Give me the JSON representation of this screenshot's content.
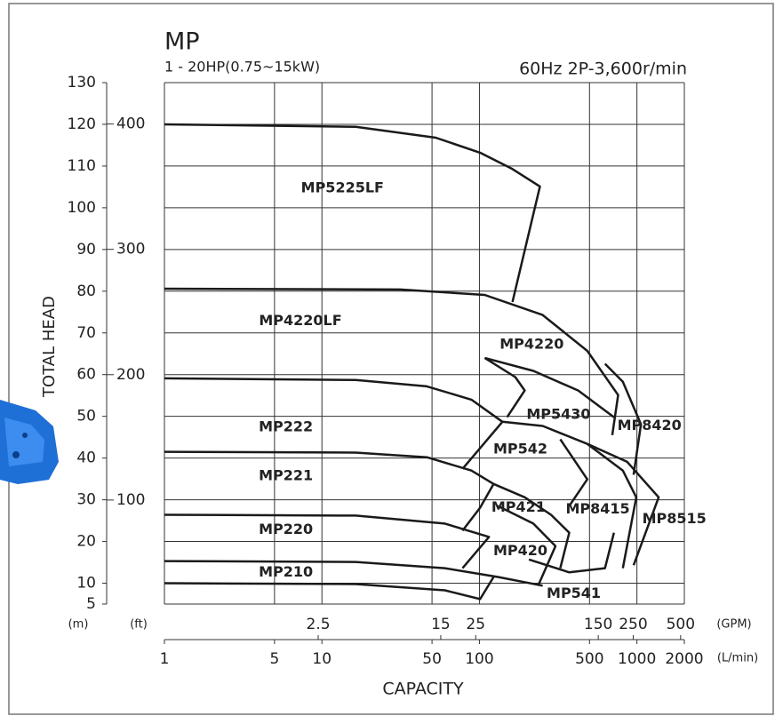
{
  "chart_data": {
    "type": "pump-curve",
    "title": "MP",
    "subtitle": "1 - 20HP(0.75~15kW)",
    "spec": "60Hz 2P-3,600r/min",
    "y_label": "TOTAL HEAD",
    "x_label": "CAPACITY",
    "y_unit": "(m)",
    "y2_unit": "(ft)",
    "x_unit": "(L/min)",
    "x2_unit": "(GPM)",
    "x_log": true,
    "grid": true,
    "color": "#1a1a1a",
    "xlim": [
      1,
      2000
    ],
    "xticks": [
      1,
      5,
      10,
      50,
      100,
      500,
      1000,
      2000
    ],
    "x2lim": [
      0.264,
      528
    ],
    "x2ticks": [
      2.5,
      15,
      25,
      150,
      250,
      500
    ],
    "ylim": [
      5,
      130
    ],
    "yticks": [
      5,
      10,
      20,
      30,
      40,
      50,
      60,
      70,
      80,
      90,
      100,
      110,
      120,
      130
    ],
    "y2lim": [
      17,
      433
    ],
    "y2ticks": [
      100,
      200,
      300,
      400
    ],
    "series": [
      {
        "x": [
          1,
          16.4,
          52.8,
          101,
          160,
          242,
          162
        ],
        "values": [
          120,
          119.4,
          116.8,
          113.2,
          109.4,
          105.1,
          77.4
        ]
      },
      {
        "x": [
          1,
          31.4,
          108,
          252,
          484,
          760,
          697
        ],
        "values": [
          80.6,
          80.4,
          79.1,
          74.3,
          65.7,
          55.1,
          45.5
        ]
      },
      {
        "x": [
          108,
          220,
          424,
          715
        ],
        "values": [
          64.0,
          60.9,
          56.2,
          49.8
        ]
      },
      {
        "x": [
          108,
          169,
          194,
          150
        ],
        "values": [
          64.0,
          59.4,
          56.2,
          49.8
        ]
      },
      {
        "x": [
          627,
          814,
          1061,
          952
        ],
        "values": [
          62.6,
          58.3,
          48.1,
          36.0
        ]
      },
      {
        "x": [
          1,
          16.4,
          46.3,
          88.9,
          140,
          78.1
        ],
        "values": [
          59.1,
          58.7,
          57.2,
          54.0,
          48.7,
          37.4
        ]
      },
      {
        "x": [
          140,
          252,
          484,
          814,
          990,
          814
        ],
        "values": [
          48.7,
          47.7,
          43.4,
          37.0,
          30.6,
          13.6
        ]
      },
      {
        "x": [
          326,
          484,
          372
        ],
        "values": [
          44.5,
          34.9,
          28.5
        ]
      },
      {
        "x": [
          1,
          16.4,
          46.3,
          88.9,
          123,
          101,
          78.1
        ],
        "values": [
          41.5,
          41.3,
          40.2,
          37.0,
          33.8,
          28.1,
          22.6
        ]
      },
      {
        "x": [
          123,
          194,
          285,
          372,
          326
        ],
        "values": [
          33.8,
          30.6,
          26.4,
          22.1,
          13.6
        ]
      },
      {
        "x": [
          484,
          867,
          1374,
          952
        ],
        "values": [
          43.4,
          39.1,
          30.6,
          14.3
        ]
      },
      {
        "x": [
          1,
          16.4,
          60.3,
          115,
          78.1
        ],
        "values": [
          26.4,
          26.2,
          24.3,
          21.1,
          13.6
        ]
      },
      {
        "x": [
          131,
          220,
          304,
          236
        ],
        "values": [
          28.5,
          24.3,
          18.9,
          9.4
        ]
      },
      {
        "x": [
          1,
          16.4,
          60.3,
          131,
          252
        ],
        "values": [
          15.3,
          15.1,
          13.6,
          11.5,
          9.4
        ]
      },
      {
        "x": [
          1,
          16.4,
          60.3,
          101,
          123
        ],
        "values": [
          10,
          9.8,
          8.3,
          6.2,
          11.5
        ]
      },
      {
        "x": [
          206,
          372,
          627,
          715
        ],
        "values": [
          15.7,
          12.6,
          13.6,
          22.1
        ]
      }
    ],
    "annotations": [
      {
        "text": "MP5225LF",
        "x": 13.5,
        "y": 104.7
      },
      {
        "text": "MP4220LF",
        "x": 7.3,
        "y": 72.8
      },
      {
        "text": "MP4220",
        "x": 215,
        "y": 67.2
      },
      {
        "text": "MP5430",
        "x": 318,
        "y": 50.4
      },
      {
        "text": "MP8420",
        "x": 1200,
        "y": 47.7
      },
      {
        "text": "MP222",
        "x": 5.9,
        "y": 47.4
      },
      {
        "text": "MP542",
        "x": 182,
        "y": 42.1
      },
      {
        "text": "MP221",
        "x": 5.9,
        "y": 35.7
      },
      {
        "text": "MP421",
        "x": 177,
        "y": 28.1
      },
      {
        "text": "MP8415",
        "x": 564,
        "y": 27.7
      },
      {
        "text": "MP8515",
        "x": 1727,
        "y": 25.3
      },
      {
        "text": "MP220",
        "x": 5.9,
        "y": 22.8
      },
      {
        "text": "MP420",
        "x": 182,
        "y": 17.7
      },
      {
        "text": "MP210",
        "x": 5.9,
        "y": 12.6
      },
      {
        "text": "MP541",
        "x": 397,
        "y": 7.4
      }
    ]
  }
}
